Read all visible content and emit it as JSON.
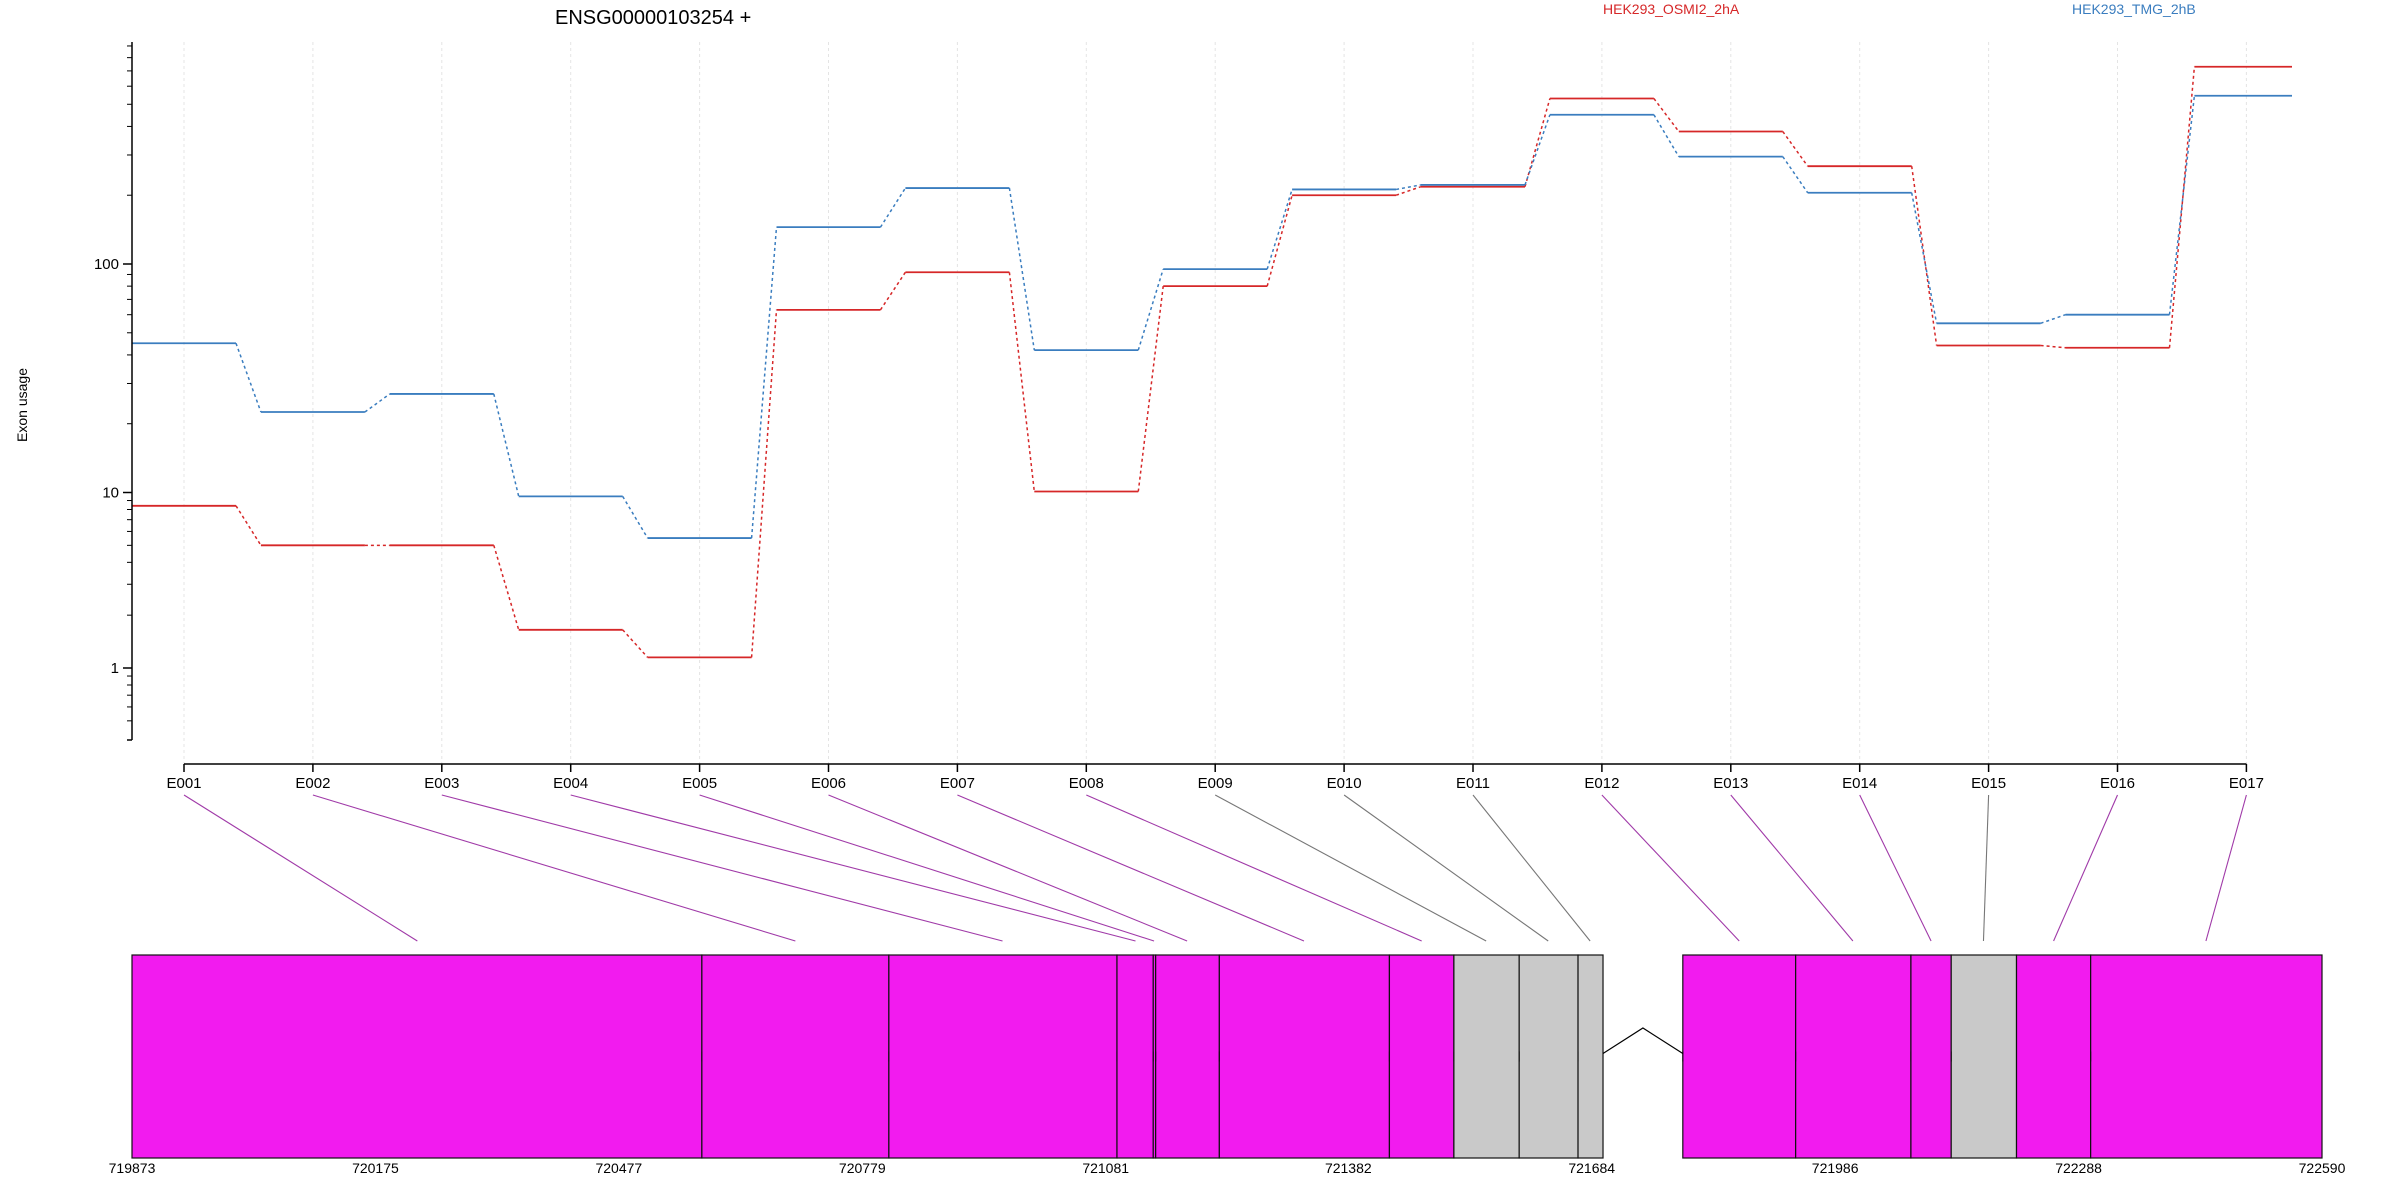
{
  "chart_data": {
    "type": "line",
    "title": "ENSG00000103254 +",
    "ylabel": "Exon usage",
    "yscale": "log",
    "ylim": [
      0.5,
      900
    ],
    "grid": "vertical",
    "yticks": [
      {
        "value": 1,
        "label": "1"
      },
      {
        "value": 10,
        "label": "10"
      },
      {
        "value": 100,
        "label": "100"
      }
    ],
    "categories": [
      "E001",
      "E002",
      "E003",
      "E004",
      "E005",
      "E006",
      "E007",
      "E008",
      "E009",
      "E010",
      "E011",
      "E012",
      "E013",
      "E014",
      "E015",
      "E016",
      "E017"
    ],
    "legend_placement": "top-right",
    "series": [
      {
        "name": "HEK293_OSMI2_2hA",
        "color": "#d62728",
        "values": [
          8.4,
          5.0,
          5.0,
          1.65,
          1.15,
          63,
          92,
          10.1,
          80,
          200,
          218,
          530,
          380,
          268,
          44,
          43,
          730
        ]
      },
      {
        "name": "HEK293_TMG_2hB",
        "color": "#3a7dbf",
        "values": [
          45,
          22.5,
          27,
          9.5,
          5.5,
          145,
          215,
          42,
          95,
          212,
          222,
          450,
          295,
          205,
          55,
          60,
          545
        ]
      }
    ],
    "gene_model": {
      "coordinate_labels": [
        "719873",
        "720175",
        "720477",
        "720779",
        "721081",
        "721382",
        "721684",
        "721986",
        "722288",
        "722590"
      ],
      "coordinate_values": [
        719873,
        720175,
        720477,
        720779,
        721081,
        721382,
        721684,
        721986,
        722288,
        722590
      ],
      "segments": [
        {
          "start": 719873,
          "end": 720580,
          "status": "tested"
        },
        {
          "start": 720580,
          "end": 720812,
          "status": "tested"
        },
        {
          "start": 720812,
          "end": 721095,
          "status": "tested"
        },
        {
          "start": 721095,
          "end": 721140,
          "status": "tested"
        },
        {
          "start": 721140,
          "end": 721143,
          "status": "tested"
        },
        {
          "start": 721143,
          "end": 721222,
          "status": "tested"
        },
        {
          "start": 721222,
          "end": 721433,
          "status": "tested"
        },
        {
          "start": 721433,
          "end": 721513,
          "status": "tested"
        },
        {
          "start": 721513,
          "end": 721594,
          "status": "untested"
        },
        {
          "start": 721594,
          "end": 721667,
          "status": "untested"
        },
        {
          "start": 721667,
          "end": 721698,
          "status": "untested"
        },
        {
          "start": 721797,
          "end": 721937,
          "status": "tested"
        },
        {
          "start": 721937,
          "end": 722080,
          "status": "tested"
        },
        {
          "start": 722080,
          "end": 722130,
          "status": "tested"
        },
        {
          "start": 722130,
          "end": 722211,
          "status": "untested"
        },
        {
          "start": 722211,
          "end": 722303,
          "status": "tested"
        },
        {
          "start": 722303,
          "end": 722590,
          "status": "tested"
        }
      ],
      "introns": [
        {
          "start": 721698,
          "end": 721797
        }
      ],
      "connectors": [
        {
          "exon": "E001",
          "coord": 720227,
          "status": "tested"
        },
        {
          "exon": "E002",
          "coord": 720696,
          "status": "tested"
        },
        {
          "exon": "E003",
          "coord": 720953,
          "status": "tested"
        },
        {
          "exon": "E004",
          "coord": 721118,
          "status": "tested"
        },
        {
          "exon": "E005",
          "coord": 721141,
          "status": "tested"
        },
        {
          "exon": "E006",
          "coord": 721182,
          "status": "tested"
        },
        {
          "exon": "E007",
          "coord": 721327,
          "status": "tested"
        },
        {
          "exon": "E008",
          "coord": 721473,
          "status": "tested"
        },
        {
          "exon": "E009",
          "coord": 721553,
          "status": "untested"
        },
        {
          "exon": "E010",
          "coord": 721630,
          "status": "untested"
        },
        {
          "exon": "E011",
          "coord": 721682,
          "status": "untested"
        },
        {
          "exon": "E012",
          "coord": 721867,
          "status": "tested"
        },
        {
          "exon": "E013",
          "coord": 722008,
          "status": "tested"
        },
        {
          "exon": "E014",
          "coord": 722105,
          "status": "tested"
        },
        {
          "exon": "E015",
          "coord": 722170,
          "status": "untested"
        },
        {
          "exon": "E016",
          "coord": 722257,
          "status": "tested"
        },
        {
          "exon": "E017",
          "coord": 722446,
          "status": "tested"
        }
      ],
      "colors": {
        "tested": "#f21bef",
        "untested": "#c9c9c9",
        "connector_tested": "#a03aa8",
        "connector_untested": "#777777",
        "outline": "#111111"
      }
    }
  }
}
